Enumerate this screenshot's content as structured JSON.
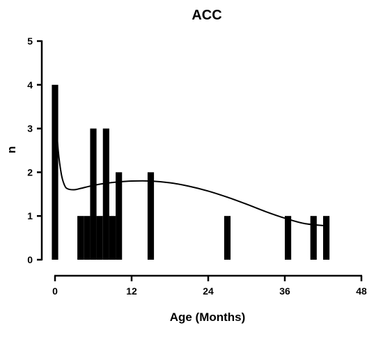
{
  "chart_data": {
    "type": "bar",
    "title": "ACC",
    "xlabel": "Age (Months)",
    "ylabel": "n",
    "xlim": [
      0,
      48
    ],
    "ylim": [
      0,
      5
    ],
    "x_ticks": [
      0,
      12,
      24,
      36,
      48
    ],
    "y_ticks": [
      0,
      1,
      2,
      3,
      4,
      5
    ],
    "bar_width_months": 1,
    "grid": false,
    "legend": "none",
    "bars": [
      {
        "x": 0,
        "y": 4
      },
      {
        "x": 4,
        "y": 1
      },
      {
        "x": 5,
        "y": 1
      },
      {
        "x": 6,
        "y": 3
      },
      {
        "x": 7,
        "y": 1
      },
      {
        "x": 8,
        "y": 3
      },
      {
        "x": 9,
        "y": 1
      },
      {
        "x": 10,
        "y": 2
      },
      {
        "x": 15,
        "y": 2
      },
      {
        "x": 27,
        "y": 1
      },
      {
        "x": 36.5,
        "y": 1
      },
      {
        "x": 40.5,
        "y": 1
      },
      {
        "x": 42.5,
        "y": 1
      }
    ],
    "fit_curve": [
      {
        "x": 0,
        "y": 3.5
      },
      {
        "x": 0.5,
        "y": 2.5
      },
      {
        "x": 1,
        "y": 1.95
      },
      {
        "x": 1.5,
        "y": 1.7
      },
      {
        "x": 2,
        "y": 1.62
      },
      {
        "x": 3,
        "y": 1.6
      },
      {
        "x": 4,
        "y": 1.63
      },
      {
        "x": 6,
        "y": 1.7
      },
      {
        "x": 8,
        "y": 1.75
      },
      {
        "x": 10,
        "y": 1.78
      },
      {
        "x": 12,
        "y": 1.8
      },
      {
        "x": 15,
        "y": 1.8
      },
      {
        "x": 18,
        "y": 1.76
      },
      {
        "x": 21,
        "y": 1.68
      },
      {
        "x": 24,
        "y": 1.57
      },
      {
        "x": 27,
        "y": 1.43
      },
      {
        "x": 30,
        "y": 1.27
      },
      {
        "x": 33,
        "y": 1.1
      },
      {
        "x": 36,
        "y": 0.95
      },
      {
        "x": 39,
        "y": 0.83
      },
      {
        "x": 42,
        "y": 0.78
      }
    ],
    "colors": {
      "bars": "#000000",
      "curve": "#000000",
      "axes": "#000000"
    }
  }
}
